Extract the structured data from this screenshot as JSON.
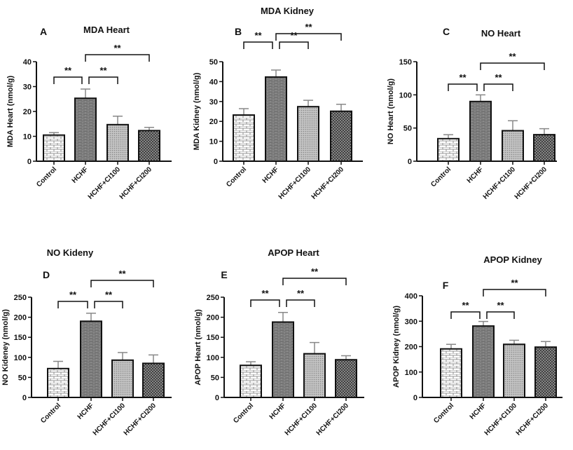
{
  "chart_data": [
    {
      "panel": "A",
      "type": "bar",
      "title": "MDA Heart",
      "ylabel": "MDA Heart (nmol/g)",
      "ylim": [
        0,
        40
      ],
      "yticks": [
        0,
        10,
        20,
        30,
        40
      ],
      "categories": [
        "Control",
        "HCHF",
        "HCHF+CI100",
        "HCHF+CI200"
      ],
      "values": [
        10.5,
        25.3,
        14.7,
        12.3
      ],
      "errors": [
        1.0,
        3.7,
        3.4,
        1.3
      ],
      "significance": [
        {
          "from": "Control",
          "to": "HCHF",
          "label": "**"
        },
        {
          "from": "HCHF",
          "to": "HCHF+CI100",
          "label": "**"
        },
        {
          "from": "HCHF",
          "to": "HCHF+CI200",
          "label": "**"
        }
      ]
    },
    {
      "panel": "B",
      "type": "bar",
      "title": "MDA Kidney",
      "ylabel": "MDA Kidney (nmol/g)",
      "ylim": [
        0,
        50
      ],
      "yticks": [
        0,
        10,
        20,
        30,
        40,
        50
      ],
      "categories": [
        "Control",
        "HCHF",
        "HCHF+CI100",
        "HCHF+CI200"
      ],
      "values": [
        23.2,
        42.3,
        27.4,
        25.1
      ],
      "errors": [
        3.2,
        3.5,
        3.2,
        3.5
      ],
      "significance": [
        {
          "from": "Control",
          "to": "HCHF",
          "label": "**"
        },
        {
          "from": "HCHF",
          "to": "HCHF+CI100",
          "label": "**"
        },
        {
          "from": "HCHF",
          "to": "HCHF+CI200",
          "label": "**"
        }
      ]
    },
    {
      "panel": "C",
      "type": "bar",
      "title": "NO Heart",
      "ylabel": "NO Heart (nmol/g)",
      "ylim": [
        0,
        150
      ],
      "yticks": [
        0,
        50,
        100,
        150
      ],
      "categories": [
        "Control",
        "HCHF",
        "HCHF+CI100",
        "HCHF+CI200"
      ],
      "values": [
        34,
        90,
        46,
        40
      ],
      "errors": [
        6,
        10,
        15,
        9
      ],
      "significance": [
        {
          "from": "Control",
          "to": "HCHF",
          "label": "**"
        },
        {
          "from": "HCHF",
          "to": "HCHF+CI100",
          "label": "**"
        },
        {
          "from": "HCHF",
          "to": "HCHF+CI200",
          "label": "**"
        }
      ]
    },
    {
      "panel": "D",
      "type": "bar",
      "title": "NO Kideny",
      "ylabel": "NO Kideney (nmol/g)",
      "ylim": [
        0,
        250
      ],
      "yticks": [
        0,
        50,
        100,
        150,
        200,
        250
      ],
      "categories": [
        "Control",
        "HCHF",
        "HCHF+CI100",
        "HCHF+CI200"
      ],
      "values": [
        72,
        190,
        93,
        85
      ],
      "errors": [
        18,
        20,
        19,
        21
      ],
      "significance": [
        {
          "from": "Control",
          "to": "HCHF",
          "label": "**"
        },
        {
          "from": "HCHF",
          "to": "HCHF+CI100",
          "label": "**"
        },
        {
          "from": "HCHF",
          "to": "HCHF+CI200",
          "label": "**"
        }
      ]
    },
    {
      "panel": "E",
      "type": "bar",
      "title": "APOP Heart",
      "ylabel": "APOP Heart (nmol/g)",
      "ylim": [
        0,
        250
      ],
      "yticks": [
        0,
        50,
        100,
        150,
        200,
        250
      ],
      "categories": [
        "Control",
        "HCHF",
        "HCHF+CI100",
        "HCHF+CI200"
      ],
      "values": [
        80,
        188,
        109,
        94
      ],
      "errors": [
        9,
        24,
        28,
        10
      ],
      "significance": [
        {
          "from": "Control",
          "to": "HCHF",
          "label": "**"
        },
        {
          "from": "HCHF",
          "to": "HCHF+CI100",
          "label": "**"
        },
        {
          "from": "HCHF",
          "to": "HCHF+CI200",
          "label": "**"
        }
      ]
    },
    {
      "panel": "F",
      "type": "bar",
      "title": "APOP Kidney",
      "ylabel": "APOP Kidney (nmol/g)",
      "ylim": [
        0,
        400
      ],
      "yticks": [
        0,
        100,
        200,
        300,
        400
      ],
      "categories": [
        "Control",
        "HCHF",
        "HCHF+CI100",
        "HCHF+CI200"
      ],
      "values": [
        191,
        281,
        209,
        198
      ],
      "errors": [
        18,
        18,
        16,
        22
      ],
      "significance": [
        {
          "from": "Control",
          "to": "HCHF",
          "label": "**"
        },
        {
          "from": "HCHF",
          "to": "HCHF+CI100",
          "label": "**"
        },
        {
          "from": "HCHF",
          "to": "HCHF+CI200",
          "label": "**"
        }
      ]
    }
  ],
  "colors": {
    "axis": "#111111",
    "control_fill": "#ffffff",
    "hchf_fill": "#6e6e6e",
    "ci100_fill": "#b5b5b5",
    "ci200_fill": "#4a4a4a",
    "error_bar": "#888888"
  }
}
